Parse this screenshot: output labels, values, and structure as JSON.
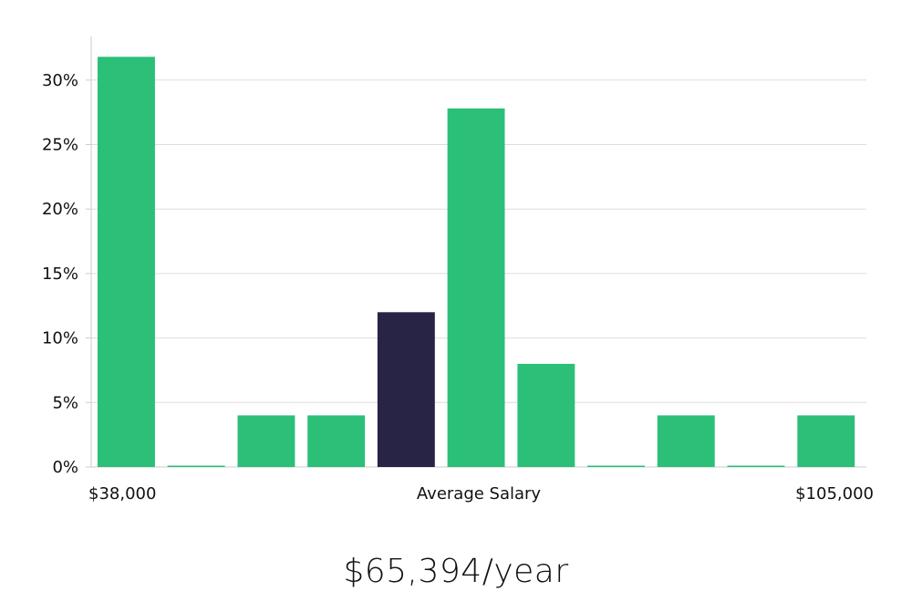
{
  "chart_data": {
    "type": "bar",
    "categories": [
      "1",
      "2",
      "3",
      "4",
      "5",
      "6",
      "7",
      "8",
      "9",
      "10",
      "11"
    ],
    "values": [
      31.8,
      0,
      4,
      4,
      12,
      27.8,
      8,
      0,
      4,
      0,
      4
    ],
    "highlight_index": 4,
    "ylim": [
      0,
      32
    ],
    "yticks": [
      0,
      5,
      10,
      15,
      20,
      25,
      30
    ],
    "ytick_suffix": "%",
    "x_labels": {
      "left": "$38,000",
      "center": "Average Salary",
      "right": "$105,000"
    },
    "grid": true,
    "colors": {
      "bar": "#2bbf78",
      "highlight": "#272445",
      "grid": "#dddddd",
      "axis": "#cccccc"
    }
  },
  "summary": {
    "salary_text": "$65,394/year"
  }
}
